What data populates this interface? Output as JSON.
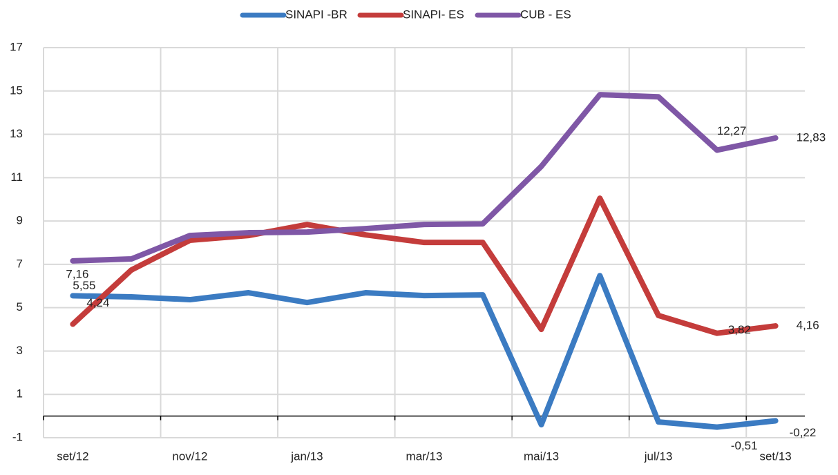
{
  "chart_data": {
    "type": "line",
    "categories": [
      "set/12",
      null,
      "nov/12",
      null,
      "jan/13",
      null,
      "mar/13",
      null,
      "mai/13",
      null,
      "jul/13",
      null,
      "set/13"
    ],
    "series": [
      {
        "name": "SINAPI -BR",
        "color": "#3b7bc2",
        "values": [
          5.55,
          5.5,
          5.37,
          5.69,
          5.24,
          5.69,
          5.56,
          5.59,
          -0.4,
          6.48,
          -0.27,
          -0.51,
          -0.22
        ],
        "value_labels": [
          "5,55",
          null,
          null,
          null,
          null,
          null,
          null,
          null,
          null,
          null,
          null,
          "-0,51",
          "-0,22"
        ]
      },
      {
        "name": "SINAPI- ES",
        "color": "#c43c3b",
        "values": [
          4.24,
          6.74,
          8.11,
          8.33,
          8.84,
          8.36,
          8.01,
          8.01,
          4.0,
          10.05,
          4.64,
          3.82,
          4.16
        ],
        "value_labels": [
          "4,24",
          null,
          null,
          null,
          null,
          null,
          null,
          null,
          null,
          null,
          null,
          "3,82",
          "4,16"
        ]
      },
      {
        "name": "CUB - ES",
        "color": "#7f57a6",
        "values": [
          7.16,
          7.25,
          8.33,
          8.46,
          8.49,
          8.65,
          8.84,
          8.87,
          11.52,
          14.83,
          14.73,
          12.27,
          12.83
        ],
        "value_labels": [
          "7,16",
          null,
          null,
          null,
          null,
          null,
          null,
          null,
          null,
          null,
          null,
          "12,27",
          "12,83"
        ]
      }
    ],
    "ylim": [
      -1,
      17
    ],
    "yticks": [
      -1,
      1,
      3,
      5,
      7,
      9,
      11,
      13,
      15,
      17
    ],
    "grid": true,
    "legend": "top"
  }
}
